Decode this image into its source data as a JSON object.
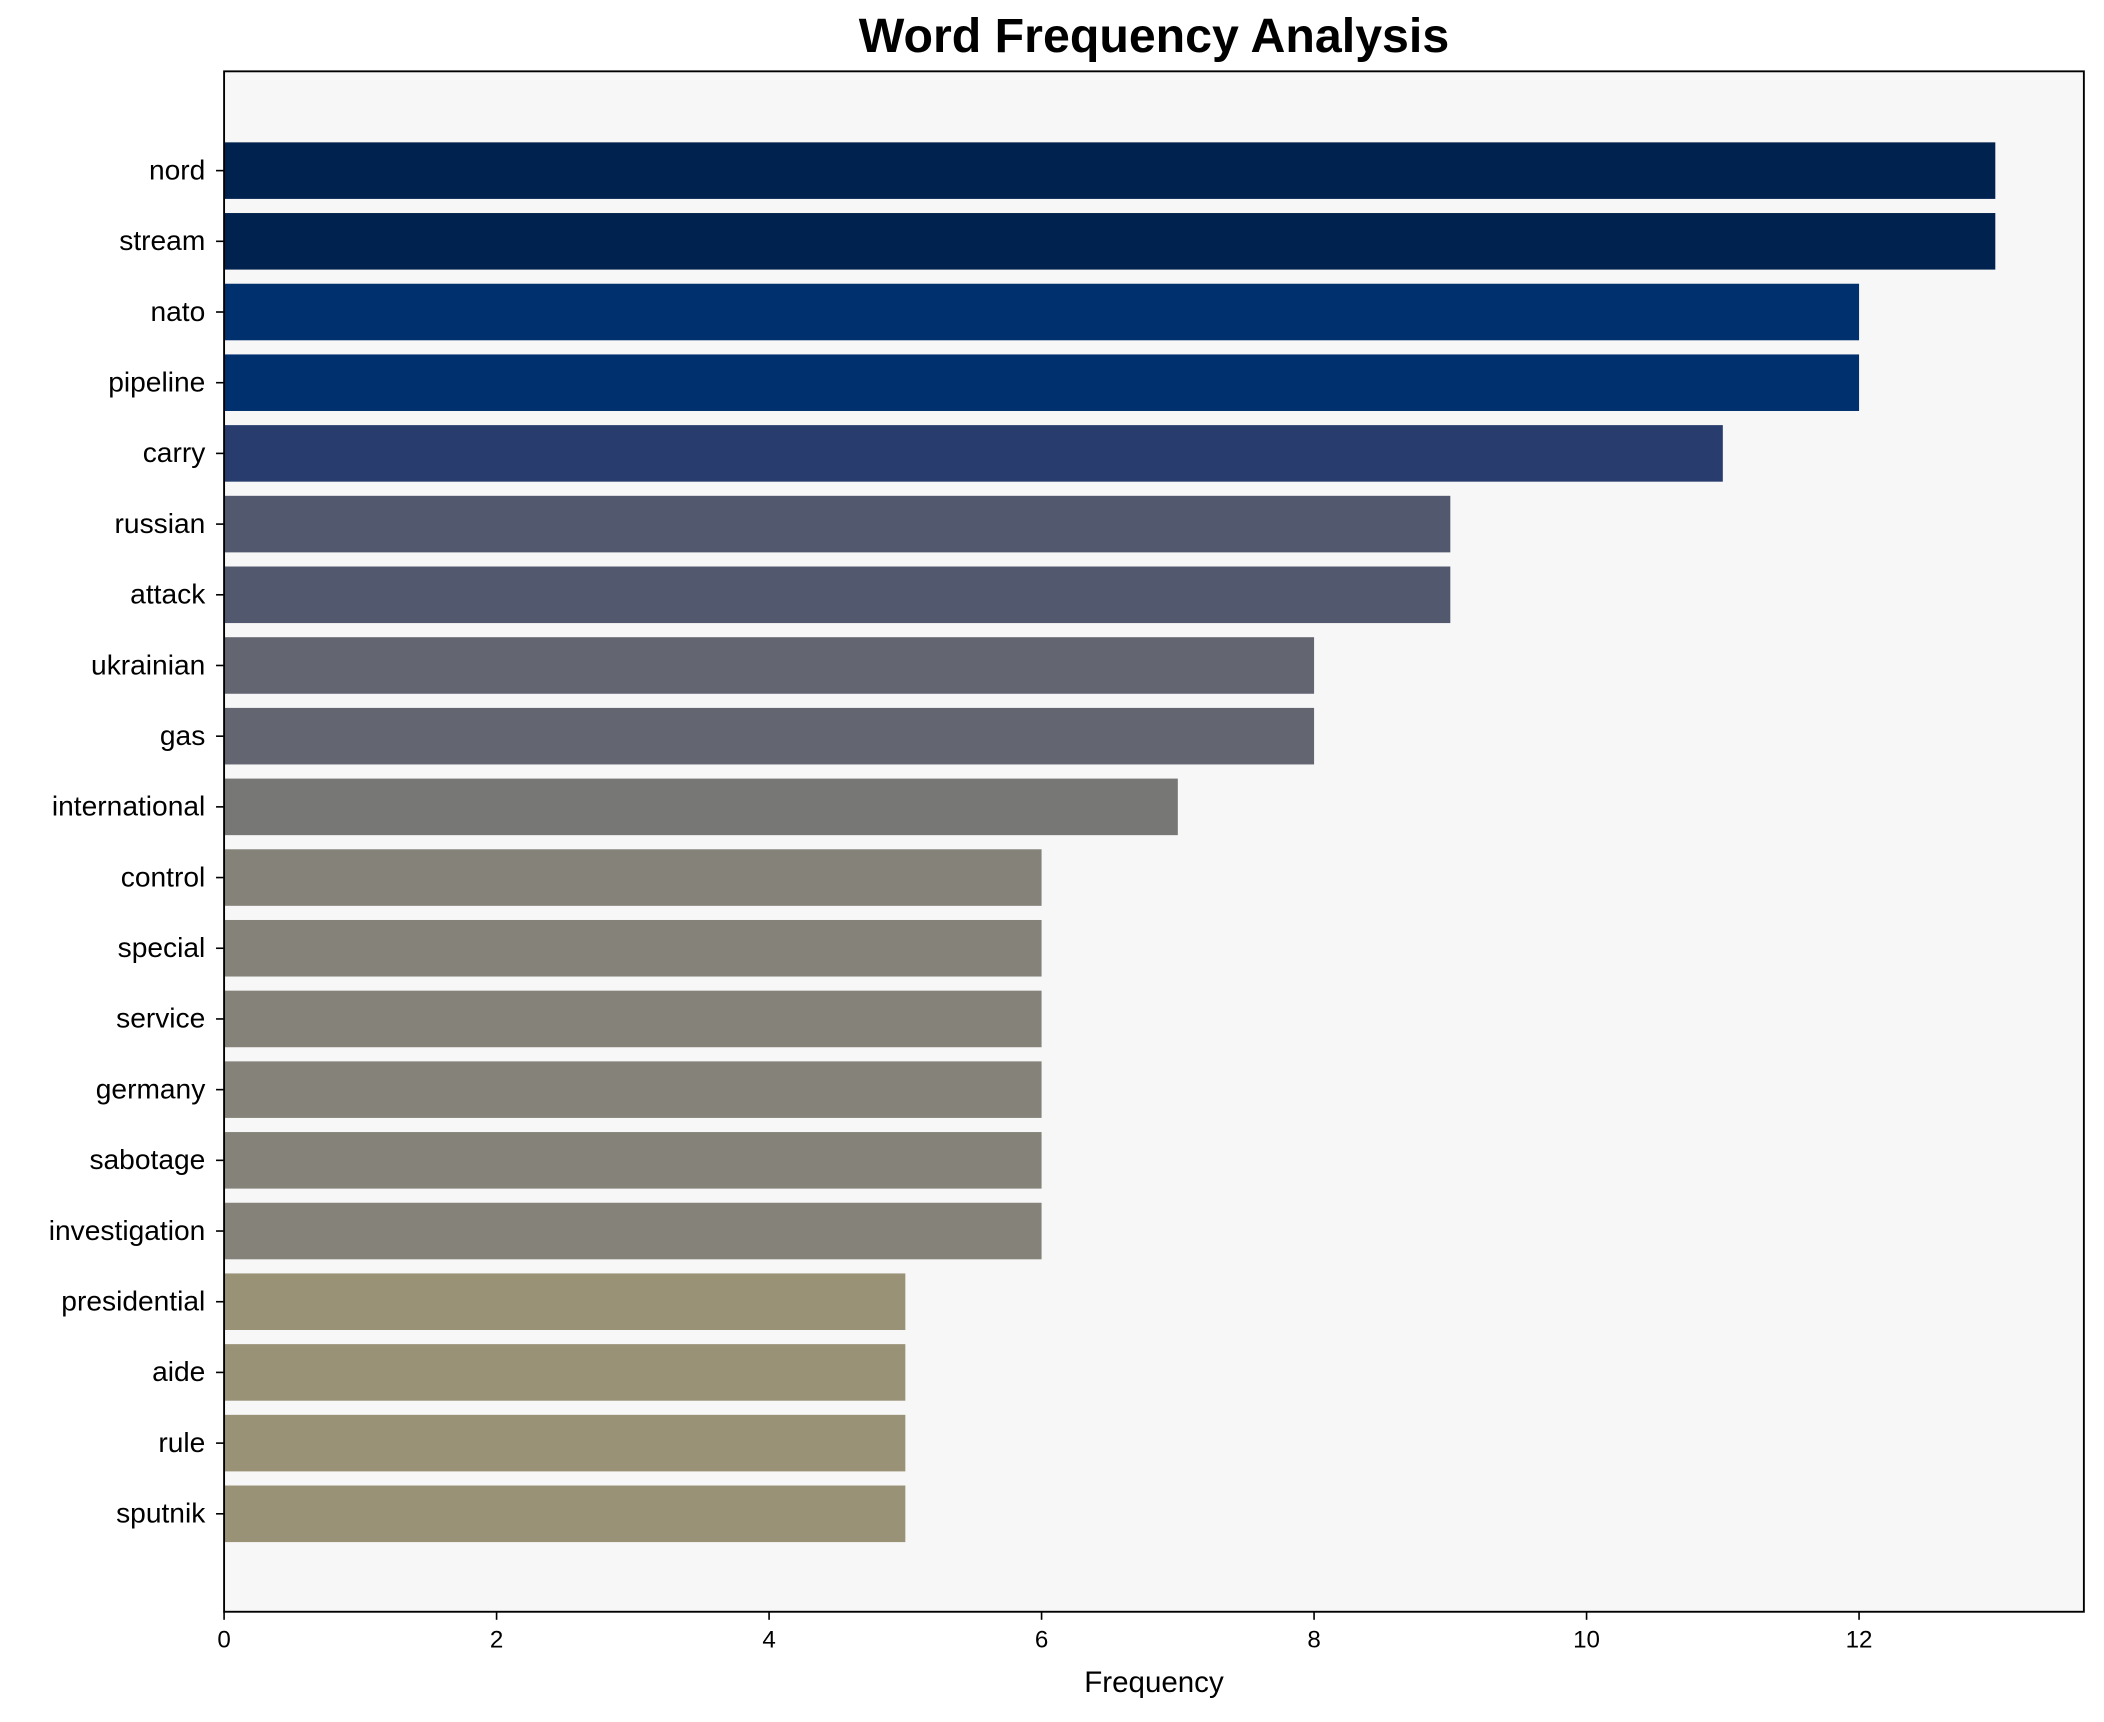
{
  "chart_data": {
    "type": "barh",
    "title": "Word Frequency Analysis",
    "x_label": "Frequency",
    "categories": [
      "nord",
      "stream",
      "nato",
      "pipeline",
      "carry",
      "russian",
      "attack",
      "ukrainian",
      "gas",
      "international",
      "control",
      "special",
      "service",
      "germany",
      "sabotage",
      "investigation",
      "presidential",
      "aide",
      "rule",
      "sputnik"
    ],
    "values": [
      13,
      13,
      12,
      12,
      11,
      9,
      9,
      8,
      8,
      7,
      6,
      6,
      6,
      6,
      6,
      6,
      5,
      5,
      5,
      5
    ],
    "colors": [
      "#00224e",
      "#00224e",
      "#01306f",
      "#01306f",
      "#283c6e",
      "#52596f",
      "#52596f",
      "#636571",
      "#636571",
      "#777776",
      "#858379",
      "#858379",
      "#858379",
      "#858379",
      "#858379",
      "#858379",
      "#999276",
      "#999276",
      "#999276",
      "#999276"
    ],
    "xlim": [
      0,
      13.65
    ],
    "xticks": [
      0,
      2,
      4,
      6,
      8,
      10,
      12
    ],
    "grid": false
  }
}
